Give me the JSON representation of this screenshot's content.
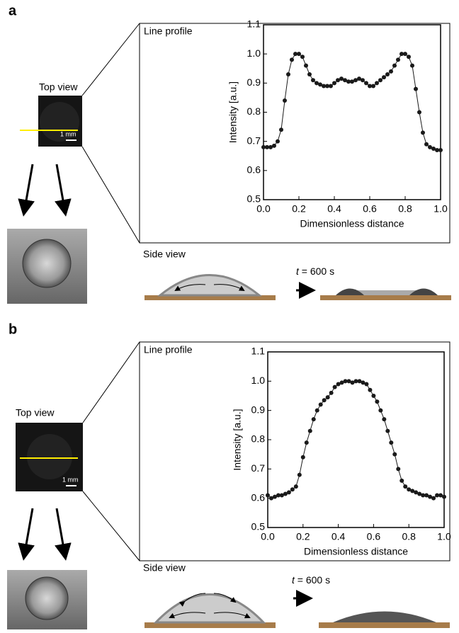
{
  "chart_data": [
    {
      "type": "line",
      "title": "Line profile",
      "xlabel": "Dimensionless distance",
      "ylabel": "Intensity [a.u.]",
      "xlim": [
        0,
        1
      ],
      "ylim": [
        0.5,
        1.1
      ],
      "xticks": [
        {
          "value": 0,
          "label": "0.0"
        },
        0.2,
        0.4,
        0.6,
        0.8,
        {
          "value": 1,
          "label": "1.0"
        }
      ],
      "yticks": [
        0.5,
        0.6,
        0.7,
        0.8,
        0.9,
        {
          "value": 1,
          "label": "1.0"
        },
        1.1
      ],
      "color": "#1a1a1a",
      "x": [
        0,
        0.02,
        0.04,
        0.06,
        0.08,
        0.1,
        0.12,
        0.14,
        0.16,
        0.18,
        0.2,
        0.22,
        0.24,
        0.26,
        0.28,
        0.3,
        0.32,
        0.34,
        0.36,
        0.38,
        0.4,
        0.42,
        0.44,
        0.46,
        0.48,
        0.5,
        0.52,
        0.54,
        0.56,
        0.58,
        0.6,
        0.62,
        0.64,
        0.66,
        0.68,
        0.7,
        0.72,
        0.74,
        0.76,
        0.78,
        0.8,
        0.82,
        0.84,
        0.86,
        0.88,
        0.9,
        0.92,
        0.94,
        0.96,
        0.98,
        1
      ],
      "values": [
        0.68,
        0.68,
        0.68,
        0.685,
        0.7,
        0.74,
        0.84,
        0.93,
        0.98,
        1.0,
        1.0,
        0.99,
        0.96,
        0.93,
        0.91,
        0.9,
        0.895,
        0.89,
        0.89,
        0.89,
        0.9,
        0.91,
        0.915,
        0.91,
        0.905,
        0.905,
        0.91,
        0.915,
        0.91,
        0.9,
        0.89,
        0.89,
        0.9,
        0.91,
        0.92,
        0.93,
        0.94,
        0.96,
        0.98,
        1.0,
        1.0,
        0.99,
        0.96,
        0.88,
        0.8,
        0.73,
        0.69,
        0.68,
        0.675,
        0.67,
        0.67
      ]
    },
    {
      "type": "line",
      "title": "Line profile",
      "xlabel": "Dimensionless distance",
      "ylabel": "Intensity [a.u.]",
      "xlim": [
        0,
        1
      ],
      "ylim": [
        0.5,
        1.1
      ],
      "xticks": [
        {
          "value": 0,
          "label": "0.0"
        },
        0.2,
        0.4,
        0.6,
        0.8,
        {
          "value": 1,
          "label": "1.0"
        }
      ],
      "yticks": [
        0.5,
        0.6,
        0.7,
        0.8,
        0.9,
        {
          "value": 1,
          "label": "1.0"
        },
        1.1
      ],
      "color": "#1a1a1a",
      "x": [
        0,
        0.02,
        0.04,
        0.06,
        0.08,
        0.1,
        0.12,
        0.14,
        0.16,
        0.18,
        0.2,
        0.22,
        0.24,
        0.26,
        0.28,
        0.3,
        0.32,
        0.34,
        0.36,
        0.38,
        0.4,
        0.42,
        0.44,
        0.46,
        0.48,
        0.5,
        0.52,
        0.54,
        0.56,
        0.58,
        0.6,
        0.62,
        0.64,
        0.66,
        0.68,
        0.7,
        0.72,
        0.74,
        0.76,
        0.78,
        0.8,
        0.82,
        0.84,
        0.86,
        0.88,
        0.9,
        0.92,
        0.94,
        0.96,
        0.98,
        1
      ],
      "values": [
        0.61,
        0.6,
        0.605,
        0.61,
        0.61,
        0.615,
        0.62,
        0.63,
        0.64,
        0.68,
        0.74,
        0.79,
        0.83,
        0.87,
        0.9,
        0.92,
        0.935,
        0.945,
        0.96,
        0.98,
        0.99,
        0.995,
        1.0,
        1.0,
        0.995,
        1.0,
        1.0,
        0.995,
        0.99,
        0.97,
        0.95,
        0.93,
        0.9,
        0.87,
        0.83,
        0.79,
        0.75,
        0.7,
        0.66,
        0.64,
        0.63,
        0.625,
        0.62,
        0.615,
        0.61,
        0.61,
        0.605,
        0.6,
        0.61,
        0.61,
        0.605
      ]
    }
  ],
  "panels": [
    {
      "label": "a",
      "top_view": "Top view",
      "scale_bar": "1 mm",
      "side_view": "Side view",
      "time_var": "t",
      "time_rest": " = 600 s"
    },
    {
      "label": "b",
      "top_view": "Top view",
      "scale_bar": "1 mm",
      "side_view": "Side view",
      "time_var": "t",
      "time_rest": " = 600 s"
    }
  ]
}
